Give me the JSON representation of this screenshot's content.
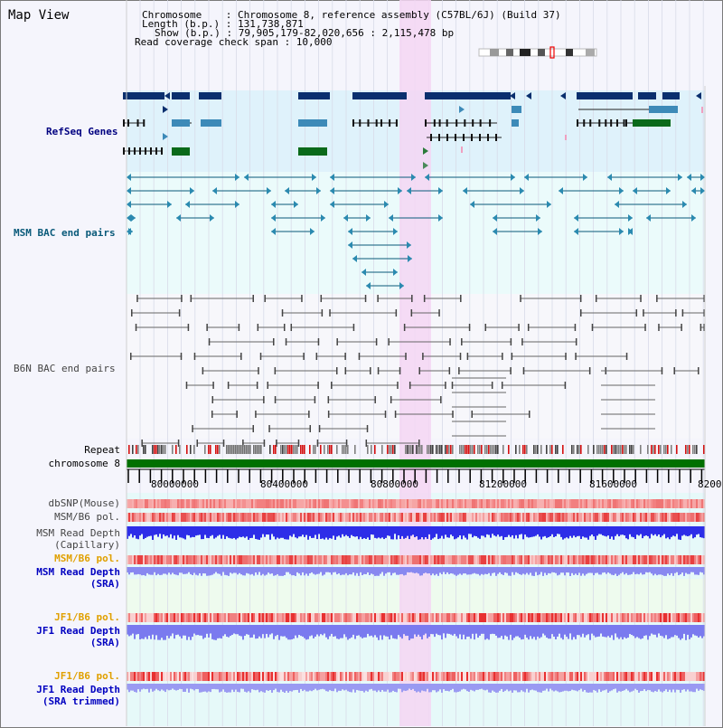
{
  "view_title": "Map View",
  "info": {
    "chromosome": "Chromosome    : Chromosome 8, reference assembly (C57BL/6J) (Build 37)",
    "length": "Length (b.p.) : 131,738,871",
    "show": "Show (b.p.) : 79,905,179-82,020,656 : 2,115,478 bp",
    "coverage": "Read coverage check span : 10,000"
  },
  "tracks": {
    "refseq": "RefSeq Genes",
    "msm_bac": "MSM BAC end pairs",
    "b6n_bac": "B6N BAC end pairs",
    "repeat": "Repeat",
    "chromosome": "chromosome 8",
    "dbsnp": "dbSNP(Mouse)",
    "msm_pol1": "MSM/B6 pol.",
    "msm_depth_cap_1": "MSM Read Depth",
    "msm_depth_cap_2": "(Capillary)",
    "msm_pol2": "MSM/B6 pol.",
    "msm_depth_sra_1": "MSM Read Depth",
    "msm_depth_sra_2": "(SRA)",
    "jf1_pol1": "JF1/B6 pol.",
    "jf1_depth_sra_1": "JF1 Read Depth",
    "jf1_depth_sra_2": "(SRA)",
    "jf1_pol2": "JF1/B6 pol.",
    "jf1_depth_trim_1": "JF1 Read Depth",
    "jf1_depth_trim_2": "(SRA trimmed)"
  },
  "axis": {
    "ticks": [
      "80000000",
      "80400000",
      "80800000",
      "81200000",
      "81600000",
      "8200"
    ]
  },
  "colors": {
    "refseq_bg": "#dff2fb",
    "highlight": "#f5d6f3",
    "refseq_label": "#000080",
    "msm_label": "#0a5a7a",
    "b6n_label": "#444444",
    "orange_label": "#e0a000",
    "blue_label": "#0000c0"
  }
}
